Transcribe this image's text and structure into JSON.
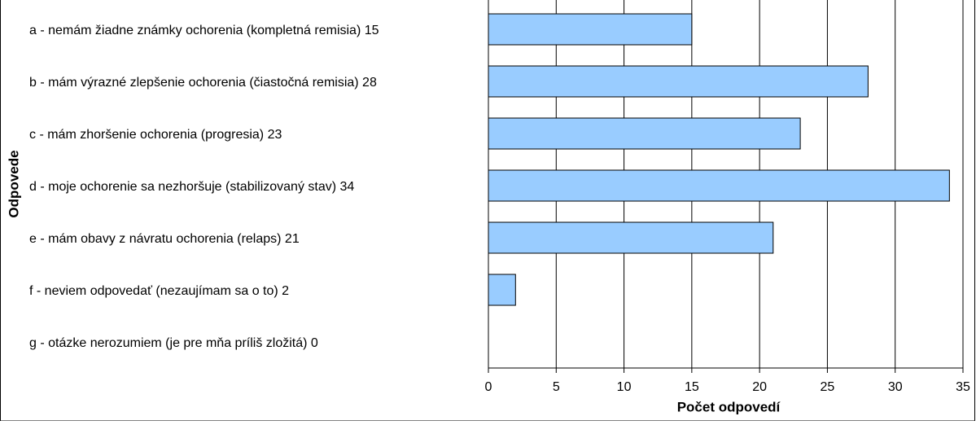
{
  "chart_data": {
    "type": "bar",
    "orientation": "horizontal",
    "xlabel": "Počet odpovedí",
    "ylabel": "Odpovede",
    "categories": [
      "a - nemám žiadne známky ochorenia (kompletná remisia) 15",
      "b -  mám výrazné zlepšenie ochorenia (čiastočná remisia) 28",
      "c - mám zhoršenie ochorenia (progresia) 23",
      "d -  moje ochorenie sa nezhoršuje (stabilizovaný stav) 34",
      "e - mám obavy z návratu ochorenia (relaps) 21",
      "f - neviem odpovedať (nezaujímam sa o to) 2",
      "g  - otázke nerozumiem (je pre mňa príliš zložitá) 0"
    ],
    "values": [
      15,
      28,
      23,
      34,
      21,
      2,
      0
    ],
    "color": "#99ccff",
    "xlim": [
      0,
      35
    ],
    "xticks": [
      0,
      5,
      10,
      15,
      20,
      25,
      30,
      35
    ],
    "grid": true
  }
}
